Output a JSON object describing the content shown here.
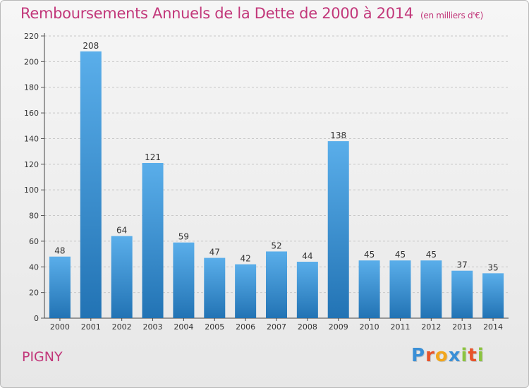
{
  "header": {
    "title": "Remboursements Annuels de la Dette de 2000 à 2014",
    "subtitle": "(en milliers d'€)"
  },
  "footer": {
    "town": "PIGNY",
    "logo_text": "Proxiti",
    "logo_letters": [
      "P",
      "r",
      "o",
      "x",
      "i",
      "t",
      "i"
    ],
    "logo_colors": [
      "#3a8fd6",
      "#e8532b",
      "#f2a61c",
      "#3a8fd6",
      "#8cc43f",
      "#e8532b",
      "#8cc43f"
    ]
  },
  "colors": {
    "bar_top": "#5aaeea",
    "bar_bottom": "#2273b4",
    "accent": "#c2377a"
  },
  "chart_data": {
    "type": "bar",
    "title": "Remboursements Annuels de la Dette de 2000 à 2014",
    "subtitle": "(en milliers d'€)",
    "categories": [
      "2000",
      "2001",
      "2002",
      "2003",
      "2004",
      "2005",
      "2006",
      "2007",
      "2008",
      "2009",
      "2010",
      "2011",
      "2012",
      "2013",
      "2014"
    ],
    "values": [
      48,
      208,
      64,
      121,
      59,
      47,
      42,
      52,
      44,
      138,
      45,
      45,
      45,
      37,
      35
    ],
    "data_labels": [
      "48",
      "208",
      "64",
      "121",
      "59",
      "47",
      "42",
      "52",
      "44",
      "138",
      "45",
      "45",
      "45",
      "37",
      "35"
    ],
    "yticks": [
      "0",
      "20",
      "40",
      "60",
      "80",
      "100",
      "120",
      "140",
      "160",
      "180",
      "200",
      "220"
    ],
    "ylim": [
      0,
      220
    ],
    "xlabel": "",
    "ylabel": "",
    "grid": "horizontal dashed"
  }
}
